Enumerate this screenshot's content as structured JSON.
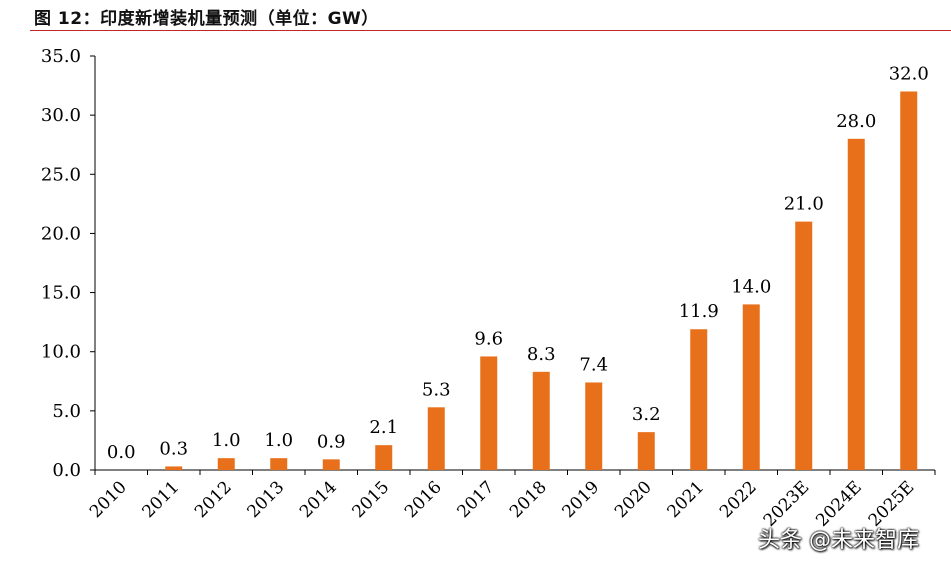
{
  "caption": "图 12：印度新增装机量预测（单位：GW）",
  "watermark": "头条 @未来智库",
  "colors": {
    "bar": "#E8701A",
    "axis": "#000000",
    "caption_rule": "#C0272D"
  },
  "chart_data": {
    "type": "bar",
    "title": "",
    "xlabel": "",
    "ylabel": "",
    "categories": [
      "2010",
      "2011",
      "2012",
      "2013",
      "2014",
      "2015",
      "2016",
      "2017",
      "2018",
      "2019",
      "2020",
      "2021",
      "2022",
      "2023E",
      "2024E",
      "2025E"
    ],
    "values": [
      0.0,
      0.3,
      1.0,
      1.0,
      0.9,
      2.1,
      5.3,
      9.6,
      8.3,
      7.4,
      3.2,
      11.9,
      14.0,
      21.0,
      28.0,
      32.0
    ],
    "value_labels": [
      "0.0",
      "0.3",
      "1.0",
      "1.0",
      "0.9",
      "2.1",
      "5.3",
      "9.6",
      "8.3",
      "7.4",
      "3.2",
      "11.9",
      "14.0",
      "21.0",
      "28.0",
      "32.0"
    ],
    "ylim": [
      0,
      35
    ],
    "yticks": [
      "0.0",
      "5.0",
      "10.0",
      "15.0",
      "20.0",
      "25.0",
      "30.0",
      "35.0"
    ],
    "grid": false,
    "legend": "none"
  }
}
